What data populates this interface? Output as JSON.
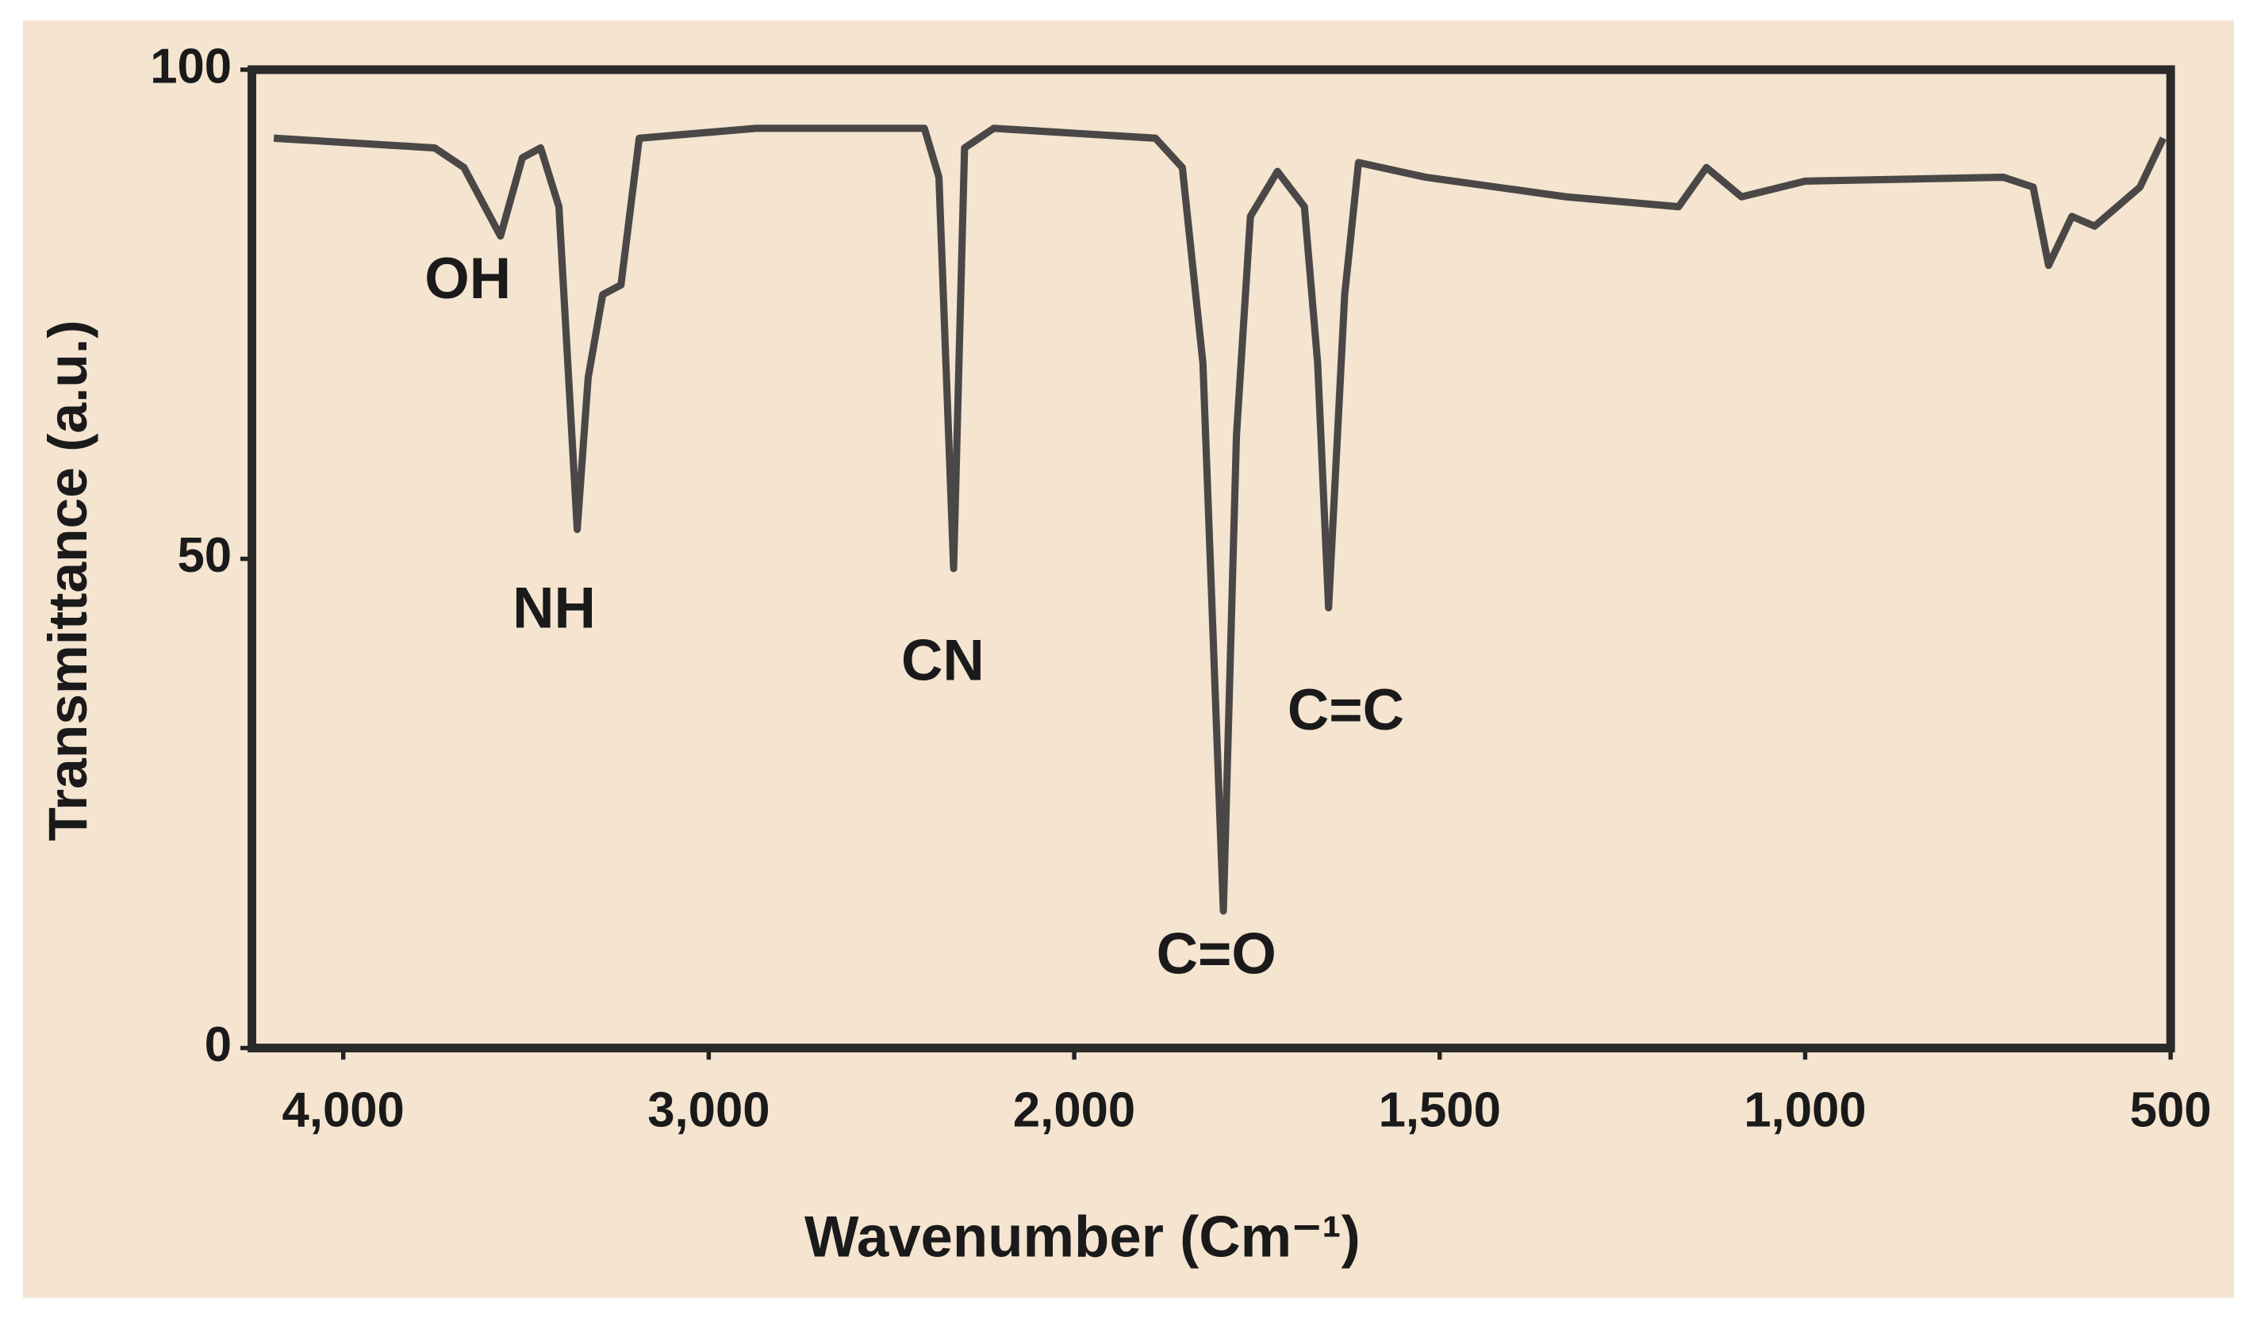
{
  "chart_data": {
    "type": "line",
    "x_label": "Wavenumber (Cm⁻¹)",
    "y_label": "Transmittance (a.u.)",
    "annotations": [
      "OH",
      "NH",
      "CN",
      "C=O",
      "C=C"
    ],
    "xlim": [
      4250,
      500
    ],
    "xticks": [
      {
        "value": 4000,
        "label": "4,000"
      },
      {
        "value": 3000,
        "label": "3,000"
      },
      {
        "value": 2000,
        "label": "2,000"
      },
      {
        "value": 1500,
        "label": "1,500"
      },
      {
        "value": 1000,
        "label": "1,000"
      },
      500
    ],
    "ylim": [
      0,
      100
    ],
    "yticks": [
      0,
      50,
      100
    ],
    "series": [
      {
        "color": "#4a4846",
        "x": [
          4190,
          3750,
          3670,
          3570,
          3510,
          3460,
          3410,
          3360,
          3330,
          3290,
          3240,
          3190,
          2870,
          2410,
          2370,
          2330,
          2300,
          2220,
          1889,
          1852,
          1824,
          1796,
          1778,
          1759,
          1722,
          1685,
          1667,
          1652,
          1630,
          1611,
          1519,
          1327,
          1173,
          1135,
          1087,
          1000,
          729,
          688,
          667,
          635,
          604,
          573,
          542,
          510
        ],
        "values": [
          93,
          92,
          90,
          83,
          91,
          92,
          86,
          53,
          68.5,
          77,
          78,
          93,
          94,
          94,
          89,
          49,
          92,
          94,
          93,
          90,
          70,
          14,
          62.6,
          85,
          89.6,
          86,
          70,
          45,
          77,
          90.5,
          89,
          87,
          86,
          90,
          87,
          88.6,
          89,
          88,
          80,
          85,
          84,
          86,
          88,
          93
        ]
      }
    ]
  }
}
